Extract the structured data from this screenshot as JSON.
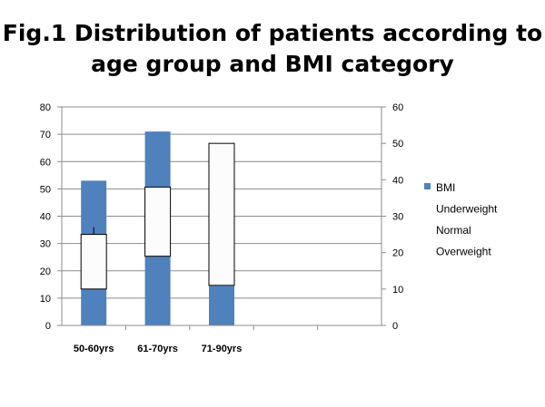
{
  "chart_data": {
    "type": "bar",
    "title_lines": [
      "Fig.1 Distribution of patients according to",
      "age group and BMI category"
    ],
    "categories": [
      "50-60yrs",
      "61-70yrs",
      "71-90yrs"
    ],
    "series": [
      {
        "name": "BMI",
        "axis": "left",
        "values": [
          53,
          71,
          14.5
        ],
        "color": "#4f81bd"
      }
    ],
    "boxes": [
      {
        "category": "50-60yrs",
        "axis": "right",
        "low": 10,
        "high": 25
      },
      {
        "category": "61-70yrs",
        "axis": "right",
        "low": 19,
        "high": 38
      },
      {
        "category": "71-90yrs",
        "axis": "right",
        "low": 11,
        "high": 50
      }
    ],
    "whisker": {
      "category": "50-60yrs",
      "axis": "right",
      "from": 25,
      "to": 27
    },
    "y_left": {
      "min": 0,
      "max": 80,
      "ticks": [
        0,
        10,
        20,
        30,
        40,
        50,
        60,
        70,
        80
      ]
    },
    "y_right": {
      "min": 0,
      "max": 60,
      "ticks": [
        0,
        10,
        20,
        30,
        40,
        50,
        60
      ]
    },
    "legend": {
      "placement": "right",
      "entries": [
        "BMI",
        "Underweight",
        "Normal",
        "Overweight"
      ]
    },
    "grid": true
  }
}
